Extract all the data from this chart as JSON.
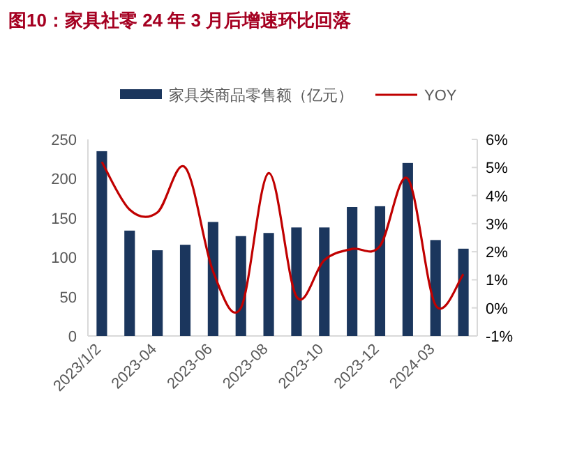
{
  "chart_data": {
    "type": "bar",
    "title": "图10：家具社零 24 年 3 月后增速环比回落",
    "categories": [
      "2023/1/2",
      null,
      "2023-04",
      null,
      "2023-06",
      null,
      "2023-08",
      null,
      "2023-10",
      null,
      "2023-12",
      null,
      "2024-03",
      null
    ],
    "series": [
      {
        "name": "家具类商品零售额（亿元）",
        "color": "#1b365d",
        "values": [
          235,
          134,
          109,
          116,
          145,
          127,
          131,
          138,
          138,
          164,
          165,
          220,
          122,
          111
        ]
      },
      {
        "name": "YOY",
        "type": "line",
        "axis": "y2",
        "color": "#c00000",
        "values": [
          5.2,
          3.5,
          3.4,
          5.0,
          1.3,
          0.0,
          4.8,
          0.4,
          1.7,
          2.1,
          2.2,
          4.6,
          0.1,
          1.2
        ]
      }
    ],
    "ylim": [
      0,
      250
    ],
    "yticks": [
      0,
      50,
      100,
      150,
      200,
      250
    ],
    "y2lim": [
      -1,
      6
    ],
    "y2ticks": [
      {
        "value": -1,
        "label": "-1%"
      },
      {
        "value": 0,
        "label": "0%"
      },
      {
        "value": 1,
        "label": "1%"
      },
      {
        "value": 2,
        "label": "2%"
      },
      {
        "value": 3,
        "label": "3%"
      },
      {
        "value": 4,
        "label": "4%"
      },
      {
        "value": 5,
        "label": "5%"
      },
      {
        "value": 6,
        "label": "6%"
      }
    ],
    "legend": "top",
    "grid": false
  }
}
